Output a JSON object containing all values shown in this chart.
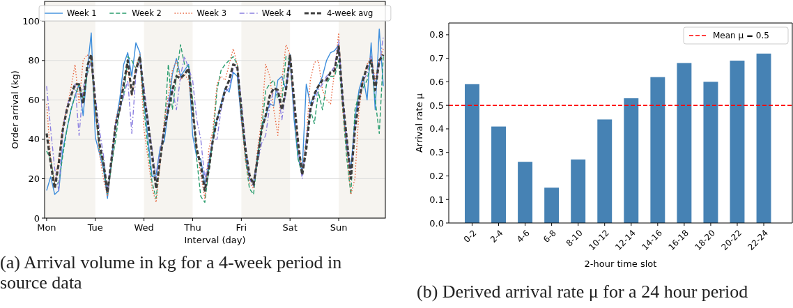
{
  "chart_data": [
    {
      "type": "line",
      "xlabel": "Interval (day)",
      "ylabel": "Order arrival (kg)",
      "categories": [
        "Mon",
        null,
        null,
        null,
        null,
        null,
        null,
        null,
        null,
        null,
        null,
        null,
        "Tue",
        null,
        null,
        null,
        null,
        null,
        null,
        null,
        null,
        null,
        null,
        null,
        "Wed",
        null,
        null,
        null,
        null,
        null,
        null,
        null,
        null,
        null,
        null,
        null,
        "Thu",
        null,
        null,
        null,
        null,
        null,
        null,
        null,
        null,
        null,
        null,
        null,
        "Fri",
        null,
        null,
        null,
        null,
        null,
        null,
        null,
        null,
        null,
        null,
        null,
        "Sat",
        null,
        null,
        null,
        null,
        null,
        null,
        null,
        null,
        null,
        null,
        null,
        "Sun",
        null,
        null,
        null,
        null,
        null,
        null,
        null,
        null,
        null,
        null,
        null
      ],
      "ylim": [
        0,
        110
      ],
      "yticks": [
        0,
        20,
        40,
        60,
        80,
        100
      ],
      "grid": "y",
      "legend": "top",
      "series": [
        {
          "name": "Week 1",
          "color": "#3c8ddc",
          "line_style": "solid",
          "values": [
            14,
            21,
            12,
            14,
            35,
            45,
            55,
            62,
            68,
            52,
            75,
            94,
            41,
            33,
            25,
            10,
            30,
            48,
            60,
            78,
            84,
            72,
            89,
            84,
            60,
            40,
            21,
            22,
            36,
            39,
            55,
            73,
            81,
            72,
            75,
            78,
            42,
            31,
            30,
            17,
            28,
            40,
            50,
            58,
            66,
            64,
            74,
            72,
            50,
            32,
            20,
            18,
            32,
            45,
            52,
            58,
            57,
            70,
            72,
            65,
            83,
            50,
            30,
            24,
            68,
            58,
            62,
            67,
            72,
            80,
            84,
            85,
            88,
            60,
            35,
            25,
            50,
            65,
            72,
            60,
            89,
            55,
            96,
            67
          ]
        },
        {
          "name": "Week 2",
          "color": "#2a9d6e",
          "line_style": "dashed",
          "values": [
            34,
            30,
            17,
            18,
            32,
            45,
            55,
            62,
            68,
            60,
            73,
            80,
            55,
            35,
            28,
            12,
            27,
            40,
            55,
            62,
            82,
            80,
            76,
            82,
            55,
            35,
            18,
            10,
            30,
            45,
            78,
            55,
            72,
            88,
            78,
            77,
            60,
            30,
            11,
            8,
            25,
            40,
            65,
            75,
            78,
            80,
            82,
            78,
            55,
            30,
            15,
            12,
            30,
            45,
            65,
            68,
            70,
            60,
            60,
            82,
            80,
            55,
            30,
            22,
            40,
            55,
            48,
            64,
            55,
            68,
            72,
            72,
            80,
            55,
            30,
            12,
            55,
            63,
            66,
            70,
            80,
            60,
            43,
            82
          ]
        },
        {
          "name": "Week 3",
          "color": "#e8643c",
          "line_style": "dotted",
          "values": [
            58,
            30,
            18,
            30,
            47,
            56,
            66,
            78,
            58,
            80,
            83,
            80,
            55,
            33,
            20,
            11,
            30,
            50,
            57,
            70,
            75,
            62,
            77,
            83,
            45,
            30,
            15,
            8,
            28,
            50,
            62,
            75,
            80,
            70,
            73,
            70,
            55,
            35,
            22,
            10,
            35,
            45,
            68,
            72,
            70,
            78,
            86,
            78,
            50,
            30,
            18,
            15,
            35,
            50,
            78,
            72,
            55,
            42,
            70,
            88,
            83,
            55,
            35,
            24,
            40,
            70,
            79,
            80,
            65,
            60,
            58,
            75,
            94,
            55,
            35,
            12,
            20,
            55,
            70,
            78,
            82,
            70,
            80,
            86
          ]
        },
        {
          "name": "Week 4",
          "color": "#8b7fe0",
          "line_style": "dashdot",
          "values": [
            67,
            45,
            25,
            14,
            45,
            57,
            62,
            68,
            42,
            66,
            73,
            80,
            62,
            45,
            32,
            14,
            30,
            48,
            55,
            62,
            70,
            43,
            73,
            80,
            67,
            50,
            35,
            20,
            35,
            45,
            60,
            65,
            55,
            72,
            82,
            76,
            70,
            50,
            40,
            20,
            30,
            40,
            40,
            55,
            64,
            66,
            76,
            77,
            60,
            38,
            20,
            16,
            28,
            38,
            42,
            57,
            65,
            64,
            50,
            65,
            80,
            55,
            35,
            20,
            40,
            55,
            60,
            65,
            68,
            72,
            74,
            77,
            90,
            60,
            40,
            22,
            47,
            60,
            70,
            73,
            82,
            68,
            78,
            92
          ]
        },
        {
          "name": "4-week avg",
          "color": "#3d3d3d",
          "line_style": "dashed",
          "values": [
            43,
            28,
            15,
            28,
            45,
            55,
            62,
            68,
            68,
            58,
            77,
            83,
            58,
            38,
            28,
            13,
            30,
            47,
            55,
            68,
            80,
            63,
            75,
            82,
            62,
            48,
            32,
            15,
            30,
            45,
            55,
            65,
            72,
            71,
            73,
            76,
            55,
            35,
            27,
            14,
            25,
            40,
            50,
            57,
            65,
            70,
            78,
            77,
            55,
            35,
            22,
            17,
            30,
            45,
            52,
            62,
            66,
            65,
            55,
            65,
            83,
            60,
            38,
            22,
            35,
            55,
            63,
            67,
            70,
            70,
            74,
            75,
            87,
            60,
            40,
            20,
            45,
            60,
            70,
            77,
            80,
            65,
            80,
            83
          ]
        }
      ],
      "annotations": [
        "(a) Arrival volume in kg for a 4-week period in source data"
      ]
    },
    {
      "type": "bar",
      "xlabel": "2-hour time slot",
      "ylabel": "Arrival rate μ",
      "categories": [
        "0-2",
        "2-4",
        "4-6",
        "6-8",
        "8-10",
        "10-12",
        "12-14",
        "14-16",
        "16-18",
        "18-20",
        "20-22",
        "22-24"
      ],
      "values": [
        0.59,
        0.41,
        0.26,
        0.15,
        0.27,
        0.44,
        0.53,
        0.62,
        0.68,
        0.6,
        0.69,
        0.72
      ],
      "color": "#4682b4",
      "ylim": [
        0,
        0.85
      ],
      "yticks": [
        {
          "value": 0,
          "label": "0.0"
        },
        0.1,
        0.2,
        0.3,
        0.4,
        0.5,
        0.6,
        0.7,
        0.8
      ],
      "ref_lines": [
        {
          "axis": "y",
          "value": 0.5,
          "label": "Mean μ = 0.5",
          "color": "#ff0000",
          "line_style": "dashed"
        }
      ],
      "legend": "top right",
      "annotations": [
        "(b) Derived arrival rate μ for a 24 hour period"
      ]
    }
  ]
}
